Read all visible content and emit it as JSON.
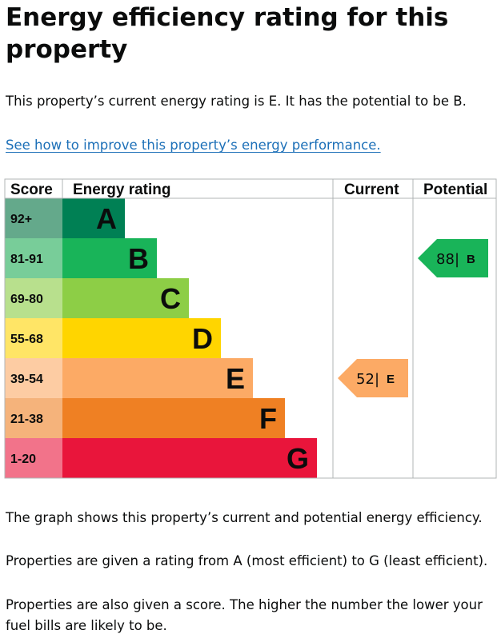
{
  "page": {
    "heading": "Energy efficiency rating for this property",
    "intro": "This property’s current energy rating is E. It has the potential to be B.",
    "link_text": "See how to improve this property’s energy performance.",
    "footer_1": "The graph shows this property’s current and potential energy efficiency.",
    "footer_2": "Properties are given a rating from A (most efficient) to G (least efficient).",
    "footer_3": "Properties are also given a score. The higher the number the lower your fuel bills are likely to be."
  },
  "chart_data": {
    "type": "table",
    "headers": {
      "score": "Score",
      "rating": "Energy rating",
      "current": "Current",
      "potential": "Potential"
    },
    "bands": [
      {
        "letter": "A",
        "score": "92+",
        "color": "#008054",
        "score_bg": "#64a98b"
      },
      {
        "letter": "B",
        "score": "81-91",
        "color": "#19b459",
        "score_bg": "#78cd99"
      },
      {
        "letter": "C",
        "score": "69-80",
        "color": "#8dce46",
        "score_bg": "#b8e08d"
      },
      {
        "letter": "D",
        "score": "55-68",
        "color": "#ffd500",
        "score_bg": "#ffe566"
      },
      {
        "letter": "E",
        "score": "39-54",
        "color": "#fcaa65",
        "score_bg": "#fdcca3"
      },
      {
        "letter": "F",
        "score": "21-38",
        "color": "#ef8023",
        "score_bg": "#f5b37b"
      },
      {
        "letter": "G",
        "score": "1-20",
        "color": "#e9153b",
        "score_bg": "#f2738a"
      }
    ],
    "current": {
      "score": 52,
      "letter": "E",
      "color": "#fcaa65"
    },
    "potential": {
      "score": 88,
      "letter": "B",
      "color": "#19b459"
    }
  }
}
